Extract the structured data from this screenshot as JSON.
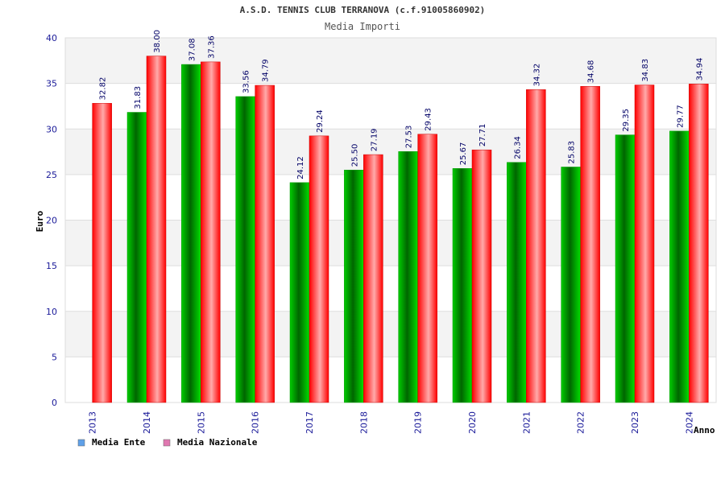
{
  "chart_data": {
    "type": "bar",
    "title": "A.S.D. TENNIS CLUB TERRANOVA (c.f.91005860902)",
    "subtitle": "Media Importi",
    "ylabel": "Euro",
    "xlabel": "Anno",
    "ylim": [
      0,
      40
    ],
    "yticks": [
      "0",
      "5",
      "10",
      "15",
      "20",
      "25",
      "30",
      "35",
      "40"
    ],
    "grid": true,
    "legend_position": "bottom-left",
    "categories": [
      "2013",
      "2014",
      "2015",
      "2016",
      "2017",
      "2018",
      "2019",
      "2020",
      "2021",
      "2022",
      "2023",
      "2024"
    ],
    "series": [
      {
        "name": "Media Ente",
        "color": "#00aa00",
        "legend_color": "#5fa0e8",
        "values": [
          null,
          31.83,
          37.08,
          33.56,
          24.12,
          25.5,
          27.53,
          25.67,
          26.34,
          25.83,
          29.35,
          29.77
        ],
        "labels": [
          "",
          "31.83",
          "37.08",
          "33.56",
          "24.12",
          "25.50",
          "27.53",
          "25.67",
          "26.34",
          "25.83",
          "29.35",
          "29.77"
        ]
      },
      {
        "name": "Media Nazionale",
        "color": "#ee1111",
        "legend_color": "#e078b0",
        "values": [
          32.82,
          38.0,
          37.36,
          34.79,
          29.24,
          27.19,
          29.43,
          27.71,
          34.32,
          34.68,
          34.83,
          34.94
        ],
        "labels": [
          "32.82",
          "38.00",
          "37.36",
          "34.79",
          "29.24",
          "27.19",
          "29.43",
          "27.71",
          "34.32",
          "34.68",
          "34.83",
          "34.94"
        ]
      }
    ]
  }
}
